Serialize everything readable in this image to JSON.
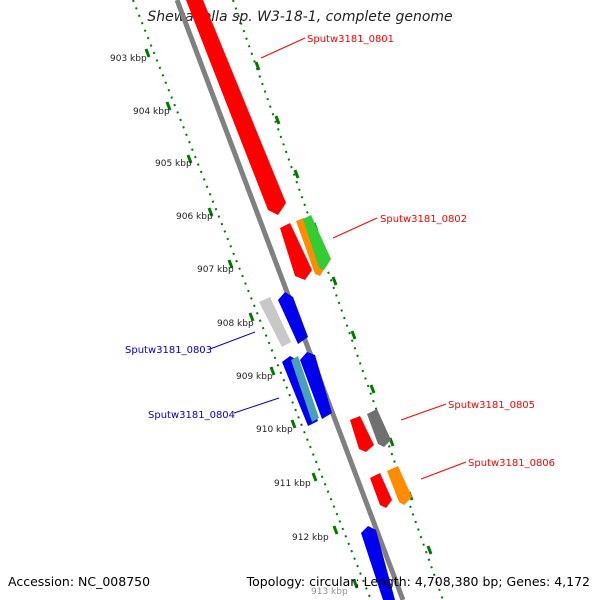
{
  "title": "Shewanella sp. W3-18-1, complete genome",
  "footer": {
    "accession": "Accession: NC_008750",
    "topology": "Topology: circular; Length: 4,708,380 bp; Genes: 4,172"
  },
  "ticks": [
    "903 kbp",
    "904 kbp",
    "905 kbp",
    "906 kbp",
    "907 kbp",
    "908 kbp",
    "909 kbp",
    "910 kbp",
    "911 kbp",
    "912 kbp",
    "913 kbp"
  ],
  "labels": [
    {
      "text": "Sputw3181_0801",
      "color": "#ff0000"
    },
    {
      "text": "Sputw3181_0802",
      "color": "#ff0000"
    },
    {
      "text": "Sputw3181_0803",
      "color": "#0000cc"
    },
    {
      "text": "Sputw3181_0804",
      "color": "#0000cc"
    },
    {
      "text": "Sputw3181_0805",
      "color": "#ff0000"
    },
    {
      "text": "Sputw3181_0806",
      "color": "#ff0000"
    }
  ],
  "colors": {
    "forward": "#ff0000",
    "reverse": "#0000ee",
    "orange": "#ff8c00",
    "green": "#33cc33",
    "grey": "#808080",
    "light_grey": "#c8c8c8",
    "teal": "#4aa0b8",
    "backbone": "#808080",
    "ticks": "#007700"
  }
}
